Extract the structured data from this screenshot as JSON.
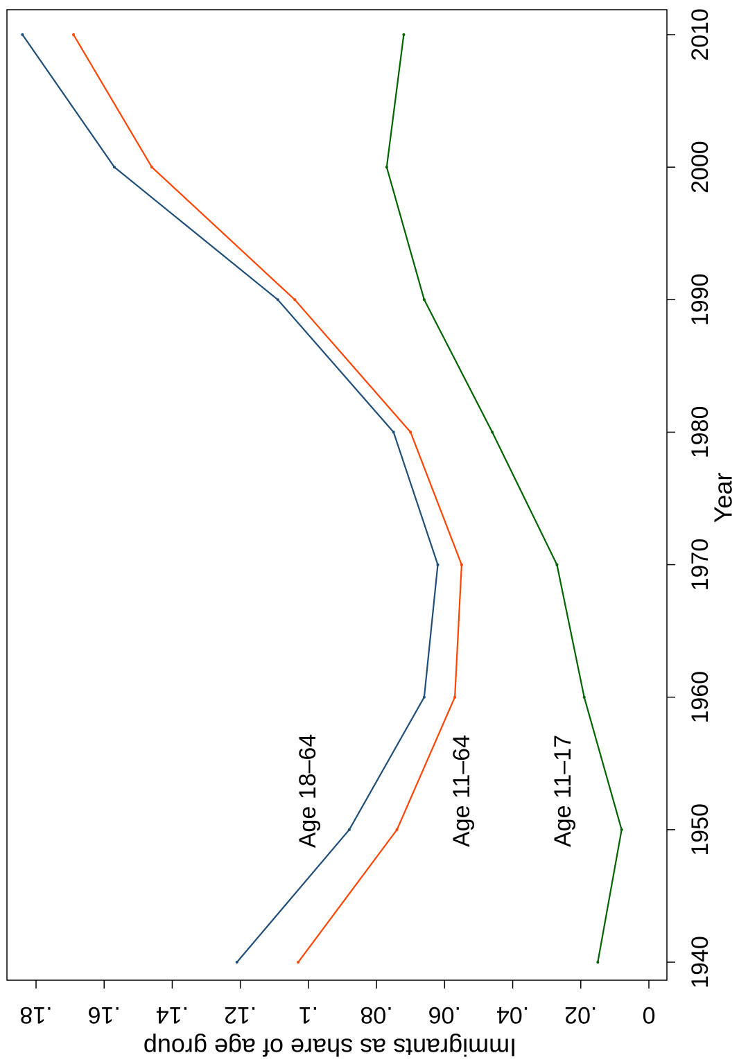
{
  "chart_data": {
    "type": "line",
    "xlabel": "Year",
    "ylabel": "Immigrants as share of age group",
    "x": [
      1940,
      1950,
      1960,
      1970,
      1980,
      1990,
      2000,
      2010
    ],
    "x_ticks": [
      "1940",
      "1950",
      "1960",
      "1970",
      "1980",
      "1990",
      "2000",
      "2010"
    ],
    "y_ticks": [
      {
        "v": 0,
        "label": "0"
      },
      {
        "v": 0.02,
        "label": ".02"
      },
      {
        "v": 0.04,
        "label": ".04"
      },
      {
        "v": 0.06,
        "label": ".06"
      },
      {
        "v": 0.08,
        "label": ".08"
      },
      {
        "v": 0.1,
        "label": ".1"
      },
      {
        "v": 0.12,
        "label": ".12"
      },
      {
        "v": 0.14,
        "label": ".14"
      },
      {
        "v": 0.16,
        "label": ".16"
      },
      {
        "v": 0.18,
        "label": ".18"
      }
    ],
    "xlim": [
      1939,
      2011
    ],
    "ylim": [
      -0.005,
      0.19
    ],
    "orientation": "rotated 90° counterclockwise",
    "grid": false,
    "series": [
      {
        "name": "Age 18–64",
        "color": "#1f4e79",
        "values": [
          0.121,
          0.088,
          0.066,
          0.062,
          0.075,
          0.109,
          0.157,
          0.184
        ]
      },
      {
        "name": "Age 11–64",
        "color": "#ff4500",
        "values": [
          0.103,
          0.074,
          0.057,
          0.055,
          0.07,
          0.104,
          0.146,
          0.169
        ]
      },
      {
        "name": "Age 11–17",
        "color": "#006400",
        "values": [
          0.015,
          0.008,
          0.019,
          0.027,
          0.046,
          0.066,
          0.077,
          0.072
        ]
      }
    ]
  }
}
